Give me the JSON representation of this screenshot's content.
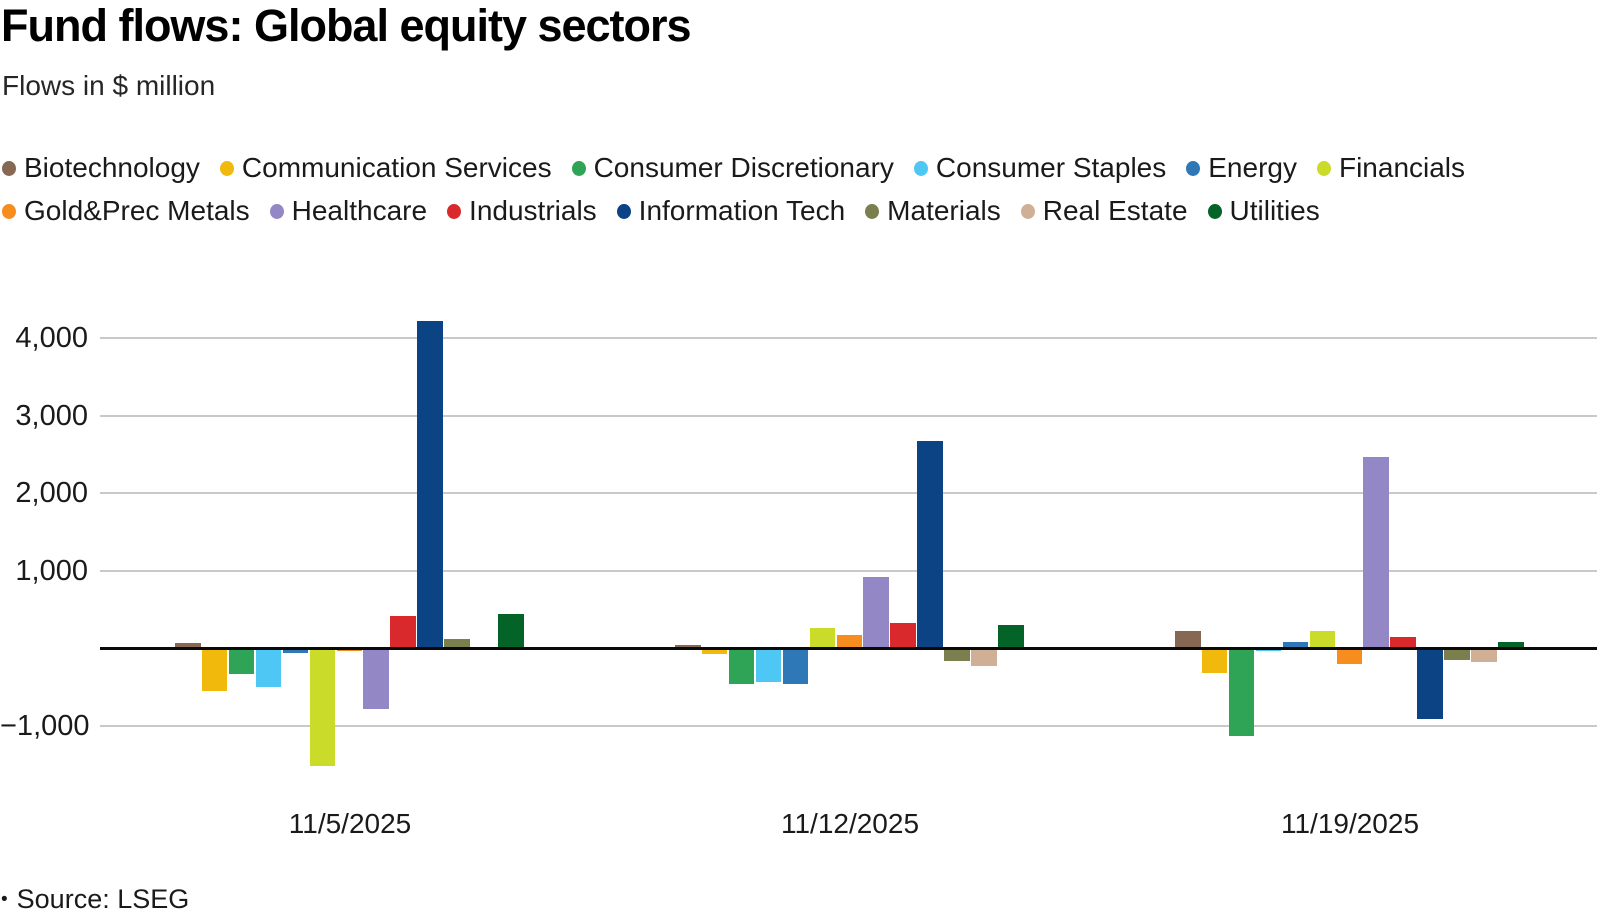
{
  "page": {
    "title": "Fund flows: Global equity sectors",
    "subtitle": "Flows in $ million",
    "source_bullet": "•",
    "source": "Source: LSEG"
  },
  "chart_data": {
    "type": "bar",
    "title": "Fund flows: Global equity sectors",
    "subtitle": "Flows in $ million",
    "unit": "$ million",
    "categories": [
      "11/5/2025",
      "11/12/2025",
      "11/19/2025"
    ],
    "series": [
      {
        "name": "Biotechnology",
        "color": "#866853",
        "values": [
          65,
          40,
          215
        ]
      },
      {
        "name": "Communication Services",
        "color": "#f1b90c",
        "values": [
          -560,
          -80,
          -320
        ]
      },
      {
        "name": "Consumer Discretionary",
        "color": "#2fa356",
        "values": [
          -330,
          -460,
          -1130
        ]
      },
      {
        "name": "Consumer Staples",
        "color": "#4fc7f5",
        "values": [
          -505,
          -440,
          -40
        ]
      },
      {
        "name": "Energy",
        "color": "#2e78b8",
        "values": [
          -60,
          -470,
          75
        ]
      },
      {
        "name": "Financials",
        "color": "#cbdb2a",
        "values": [
          -1520,
          260,
          220
        ]
      },
      {
        "name": "Gold&Prec Metals",
        "color": "#f68d1e",
        "values": [
          -35,
          170,
          -210
        ]
      },
      {
        "name": "Healthcare",
        "color": "#9387c5",
        "values": [
          -785,
          915,
          2460
        ]
      },
      {
        "name": "Industrials",
        "color": "#d9292d",
        "values": [
          410,
          325,
          145
        ]
      },
      {
        "name": "Information Tech",
        "color": "#0b4384",
        "values": [
          4220,
          2665,
          -910
        ]
      },
      {
        "name": "Materials",
        "color": "#7b7f4e",
        "values": [
          110,
          -165,
          -160
        ]
      },
      {
        "name": "Real Estate",
        "color": "#cfb096",
        "values": [
          -30,
          -235,
          -175
        ]
      },
      {
        "name": "Utilities",
        "color": "#046327",
        "values": [
          435,
          300,
          75
        ]
      }
    ],
    "yticks": [
      {
        "value": 4000,
        "label": "4,000"
      },
      {
        "value": 3000,
        "label": "3,000"
      },
      {
        "value": 2000,
        "label": "2,000"
      },
      {
        "value": 1000,
        "label": "1,000"
      },
      {
        "value": -1000,
        "label": "−1,000"
      }
    ],
    "ylim": [
      -1600,
      4500
    ],
    "grid": true,
    "legend_position": "top",
    "legend_rows": [
      [
        0,
        1,
        2,
        3,
        4,
        5
      ],
      [
        6,
        7,
        8,
        9,
        10,
        11,
        12
      ]
    ],
    "source": "Source: LSEG"
  }
}
